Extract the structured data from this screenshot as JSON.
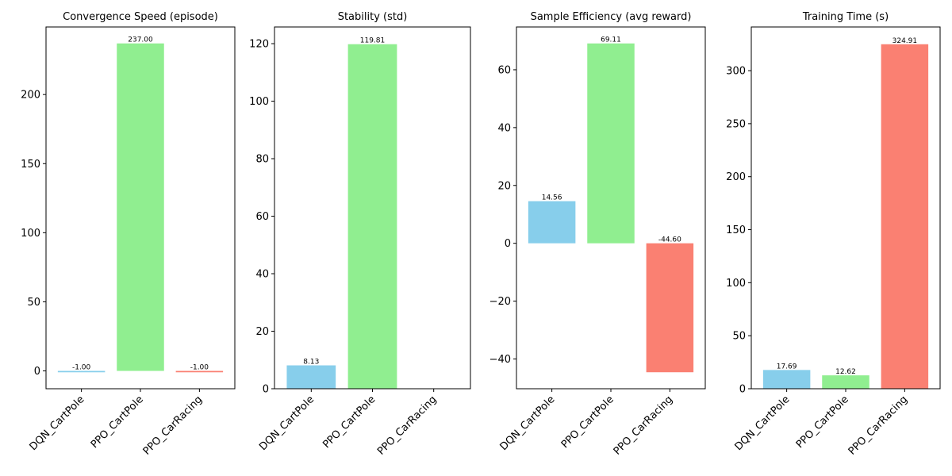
{
  "chart_data": [
    {
      "type": "bar",
      "title": "Convergence Speed (episode)",
      "xlabel": "",
      "ylabel": "",
      "categories": [
        "DQN_CartPole",
        "PPO_CartPole",
        "PPO_CarRacing"
      ],
      "values": [
        -1.0,
        237.0,
        -1.0
      ],
      "value_labels": [
        "-1.00",
        "237.00",
        "-1.00"
      ],
      "colors": [
        "#87ceeb",
        "#90ee90",
        "#fa8072"
      ],
      "ylim": [
        -12.9,
        248.9
      ],
      "yticks": [
        0,
        50,
        100,
        150,
        200
      ],
      "ytick_labels": [
        "0",
        "50",
        "100",
        "150",
        "200"
      ],
      "grid": false,
      "legend": false
    },
    {
      "type": "bar",
      "title": "Stability (std)",
      "xlabel": "",
      "ylabel": "",
      "categories": [
        "DQN_CartPole",
        "PPO_CartPole",
        "PPO_CarRacing"
      ],
      "values": [
        8.13,
        119.81,
        0
      ],
      "value_labels": [
        "8.13",
        "119.81",
        ""
      ],
      "colors": [
        "#87ceeb",
        "#90ee90",
        "#fa8072"
      ],
      "ylim": [
        0,
        125.8
      ],
      "yticks": [
        0,
        20,
        40,
        60,
        80,
        100,
        120
      ],
      "ytick_labels": [
        "0",
        "20",
        "40",
        "60",
        "80",
        "100",
        "120"
      ],
      "grid": false,
      "legend": false
    },
    {
      "type": "bar",
      "title": "Sample Efficiency (avg reward)",
      "xlabel": "",
      "ylabel": "",
      "categories": [
        "DQN_CartPole",
        "PPO_CartPole",
        "PPO_CarRacing"
      ],
      "values": [
        14.56,
        69.11,
        -44.6
      ],
      "value_labels": [
        "14.56",
        "69.11",
        "-44.60"
      ],
      "colors": [
        "#87ceeb",
        "#90ee90",
        "#fa8072"
      ],
      "ylim": [
        -50.3,
        74.8
      ],
      "yticks": [
        -40,
        -20,
        0,
        20,
        40,
        60
      ],
      "ytick_labels": [
        "−40",
        "−20",
        "0",
        "20",
        "40",
        "60"
      ],
      "grid": false,
      "legend": false
    },
    {
      "type": "bar",
      "title": "Training Time (s)",
      "xlabel": "",
      "ylabel": "",
      "categories": [
        "DQN_CartPole",
        "PPO_CartPole",
        "PPO_CarRacing"
      ],
      "values": [
        17.69,
        12.62,
        324.91
      ],
      "value_labels": [
        "17.69",
        "12.62",
        "324.91"
      ],
      "colors": [
        "#87ceeb",
        "#90ee90",
        "#fa8072"
      ],
      "ylim": [
        0,
        341.2
      ],
      "yticks": [
        0,
        50,
        100,
        150,
        200,
        250,
        300
      ],
      "ytick_labels": [
        "0",
        "50",
        "100",
        "150",
        "200",
        "250",
        "300"
      ],
      "grid": false,
      "legend": false
    }
  ]
}
